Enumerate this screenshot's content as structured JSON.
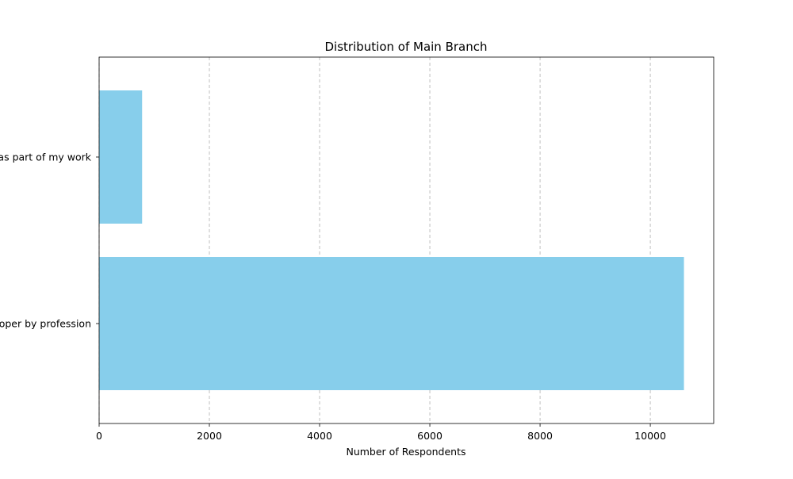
{
  "chart_data": {
    "type": "bar",
    "orientation": "horizontal",
    "title": "Distribution of Main Branch",
    "xlabel": "Number of Respondents",
    "ylabel": "",
    "categories": [
      "I am a developer by profession",
      "I am not primarily a developer, but I write code sometimes as part of my work"
    ],
    "values": [
      10610,
      780
    ],
    "xlim": [
      0,
      11150
    ],
    "xticks": [
      0,
      2000,
      4000,
      6000,
      8000,
      10000
    ],
    "grid": {
      "x": true,
      "y": false,
      "style": "dashed"
    },
    "bar_color": "#87ceeb"
  }
}
